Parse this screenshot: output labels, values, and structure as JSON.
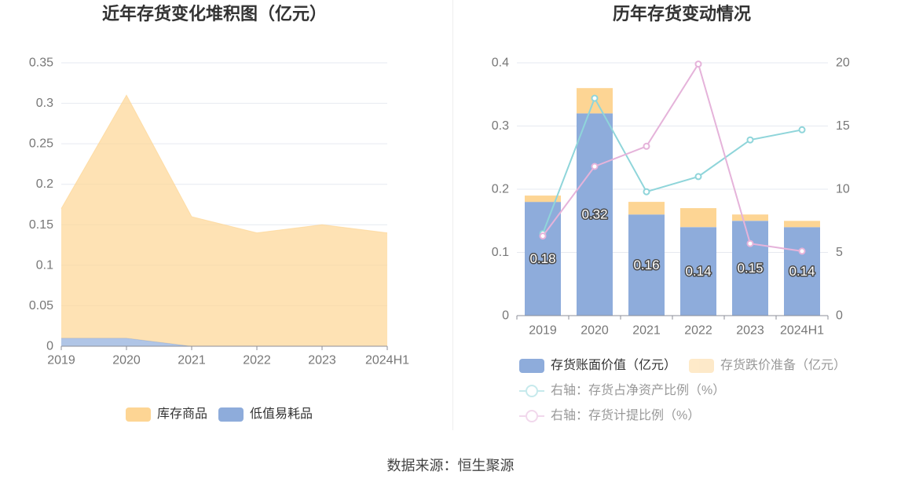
{
  "source": "数据来源：恒生聚源",
  "chart_data": [
    {
      "type": "area",
      "stacked": true,
      "title": "近年存货变化堆积图（亿元）",
      "categories": [
        "2019",
        "2020",
        "2021",
        "2022",
        "2023",
        "2024H1"
      ],
      "series": [
        {
          "name": "库存商品",
          "values": [
            0.16,
            0.3,
            0.16,
            0.14,
            0.15,
            0.14
          ],
          "color": "#fdd594"
        },
        {
          "name": "低值易耗品",
          "values": [
            0.01,
            0.01,
            0,
            0,
            0,
            0
          ],
          "color": "#8eacdb"
        }
      ],
      "ylim": [
        0,
        0.35
      ],
      "yticks": [
        0,
        0.05,
        0.1,
        0.15,
        0.2,
        0.25,
        0.3,
        0.35
      ],
      "grid": true,
      "legend": "bottom"
    },
    {
      "type": "bar",
      "title": "历年存货变动情况",
      "categories": [
        "2019",
        "2020",
        "2021",
        "2022",
        "2023",
        "2024H1"
      ],
      "series": [
        {
          "name": "存货账面价值（亿元）",
          "type": "bar",
          "axis": "left",
          "stack": true,
          "values": [
            0.18,
            0.32,
            0.16,
            0.14,
            0.15,
            0.14
          ],
          "color": "#8eacdb"
        },
        {
          "name": "存货跌价准备（亿元）",
          "type": "bar",
          "axis": "left",
          "stack": true,
          "values": [
            0.01,
            0.04,
            0.02,
            0.03,
            0.01,
            0.01
          ],
          "color": "#fdd594"
        },
        {
          "name": "右轴：存货占净资产比例（%）",
          "type": "line",
          "axis": "right",
          "values": [
            6.5,
            17.2,
            9.8,
            11.0,
            13.9,
            14.7
          ],
          "color": "#8fd5da"
        },
        {
          "name": "右轴：存货计提比例（%）",
          "type": "line",
          "axis": "right",
          "values": [
            6.3,
            11.8,
            13.4,
            19.9,
            5.7,
            5.1
          ],
          "color": "#e5b3da"
        }
      ],
      "ylim": [
        0,
        0.4
      ],
      "yticks": [
        0,
        0.1,
        0.2,
        0.3,
        0.4
      ],
      "y2lim": [
        0,
        20
      ],
      "y2ticks": [
        0,
        5,
        10,
        15,
        20
      ],
      "grid": true,
      "legend": "bottom"
    }
  ]
}
